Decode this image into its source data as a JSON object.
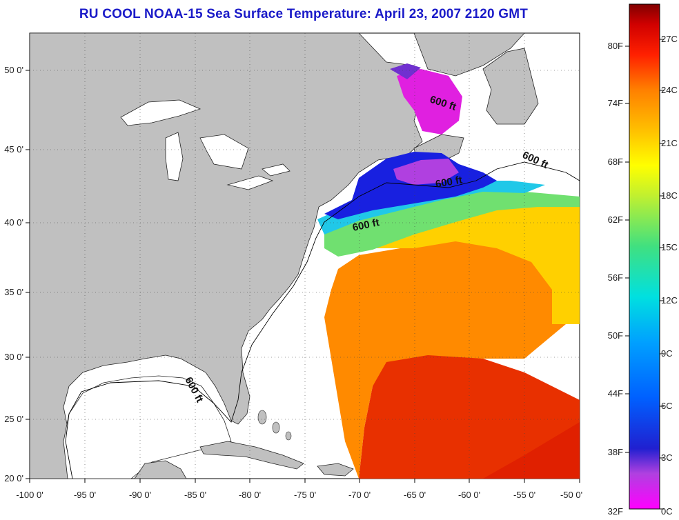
{
  "title": "RU COOL  NOAA-15  Sea Surface Temperature:  April 23, 2007 2120 GMT",
  "map": {
    "lon_range": [
      -100,
      -50
    ],
    "lat_range": [
      20,
      52.5
    ],
    "lon_ticks": [
      "-100 0'",
      "-95 0'",
      "-90 0'",
      "-85 0'",
      "-80 0'",
      "-75 0'",
      "-70 0'",
      "-65 0'",
      "-60 0'",
      "-55 0'",
      "-50 0'"
    ],
    "lat_ticks": [
      "20 0'",
      "25 0'",
      "30 0'",
      "35 0'",
      "40 0'",
      "45 0'",
      "50 0'"
    ],
    "isobath_labels": [
      "600 ft",
      "600 ft",
      "600 ft",
      "600 ft",
      "600 ft"
    ],
    "land_color": "#c0c0c0",
    "ocean_color": "#ffffff"
  },
  "colorbar": {
    "fahrenheit_labels": [
      "80F",
      "74F",
      "68F",
      "62F",
      "56F",
      "50F",
      "44F",
      "38F",
      "32F"
    ],
    "celsius_labels": [
      "27C",
      "24C",
      "21C",
      "18C",
      "15C",
      "12C",
      "9C",
      "6C",
      "3C",
      "0C"
    ],
    "colors": [
      "#ff00ff",
      "#b040e0",
      "#2020d0",
      "#0060ff",
      "#00a0ff",
      "#00e0e0",
      "#40e080",
      "#c0f030",
      "#ffff00",
      "#ffc000",
      "#ff8000",
      "#ff4000",
      "#ff0000",
      "#d00000",
      "#800000"
    ]
  }
}
